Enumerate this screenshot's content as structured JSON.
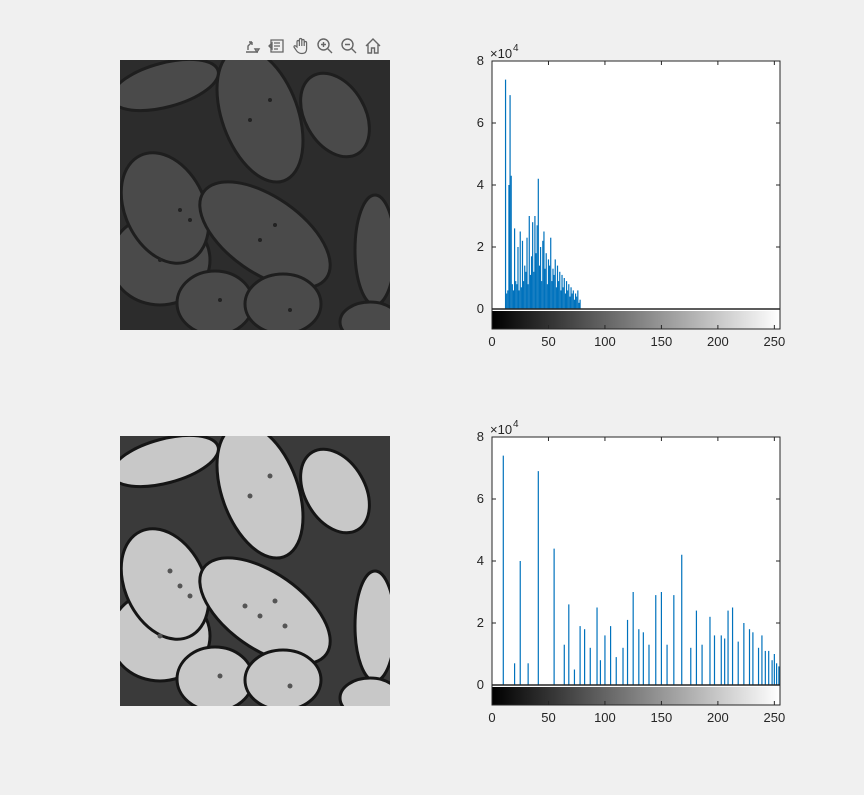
{
  "toolbar": {
    "icons": [
      "export-icon",
      "brush-icon",
      "pan-icon",
      "zoom-in-icon",
      "zoom-out-icon",
      "home-icon"
    ]
  },
  "images": [
    {
      "name": "original-image",
      "tone": "dark"
    },
    {
      "name": "equalized-image",
      "tone": "bright"
    }
  ],
  "chart_data": [
    {
      "type": "bar",
      "title": "",
      "xlabel": "",
      "ylabel": "",
      "exponent_label": "×10",
      "exponent": "4",
      "xlim": [
        0,
        255
      ],
      "ylim": [
        0,
        80000
      ],
      "xticks": [
        "0",
        "50",
        "100",
        "150",
        "200",
        "250"
      ],
      "yticks": [
        "0",
        "2",
        "4",
        "6",
        "8"
      ],
      "colorbar": true,
      "color": "#0072bd",
      "x": [
        12,
        13,
        14,
        15,
        16,
        17,
        18,
        19,
        20,
        21,
        22,
        23,
        24,
        25,
        26,
        27,
        28,
        29,
        30,
        31,
        32,
        33,
        34,
        35,
        36,
        37,
        38,
        39,
        40,
        41,
        42,
        43,
        44,
        45,
        46,
        47,
        48,
        49,
        50,
        51,
        52,
        53,
        54,
        55,
        56,
        57,
        58,
        59,
        60,
        61,
        62,
        63,
        64,
        65,
        66,
        67,
        68,
        69,
        70,
        71,
        72,
        73,
        74,
        75,
        76,
        77,
        78
      ],
      "values": [
        74000,
        5000,
        6000,
        40000,
        69000,
        43000,
        8000,
        6000,
        26000,
        9000,
        8000,
        20000,
        6000,
        25000,
        7000,
        22000,
        9000,
        14000,
        12000,
        23000,
        8000,
        30000,
        11000,
        17000,
        28000,
        12000,
        30000,
        18000,
        27000,
        42000,
        14000,
        20000,
        9000,
        22000,
        25000,
        13000,
        18000,
        8000,
        16000,
        14000,
        23000,
        9000,
        13000,
        11000,
        16000,
        7000,
        14000,
        9000,
        12000,
        6000,
        11000,
        7000,
        10000,
        5000,
        9000,
        6000,
        8000,
        4000,
        7000,
        5000,
        6000,
        3000,
        5000,
        4000,
        6000,
        2000,
        3000
      ]
    },
    {
      "type": "bar",
      "title": "",
      "xlabel": "",
      "ylabel": "",
      "exponent_label": "×10",
      "exponent": "4",
      "xlim": [
        0,
        255
      ],
      "ylim": [
        0,
        80000
      ],
      "xticks": [
        "0",
        "50",
        "100",
        "150",
        "200",
        "250"
      ],
      "yticks": [
        "0",
        "2",
        "4",
        "6",
        "8"
      ],
      "colorbar": true,
      "color": "#0072bd",
      "x": [
        10,
        20,
        25,
        32,
        41,
        55,
        64,
        68,
        73,
        78,
        82,
        87,
        93,
        96,
        100,
        105,
        110,
        116,
        120,
        125,
        130,
        134,
        139,
        145,
        150,
        155,
        161,
        168,
        176,
        181,
        186,
        193,
        197,
        203,
        206,
        209,
        213,
        218,
        223,
        228,
        231,
        236,
        239,
        242,
        245,
        248,
        250,
        252,
        254
      ],
      "values": [
        74000,
        7000,
        40000,
        7000,
        69000,
        44000,
        13000,
        26000,
        5000,
        19000,
        18000,
        12000,
        25000,
        8000,
        16000,
        19000,
        9000,
        12000,
        21000,
        30000,
        18000,
        17000,
        13000,
        29000,
        30000,
        13000,
        29000,
        42000,
        12000,
        24000,
        13000,
        22000,
        16000,
        16000,
        15000,
        24000,
        25000,
        14000,
        20000,
        18000,
        17000,
        12000,
        16000,
        11000,
        11000,
        8000,
        10000,
        7000,
        6000
      ]
    }
  ]
}
